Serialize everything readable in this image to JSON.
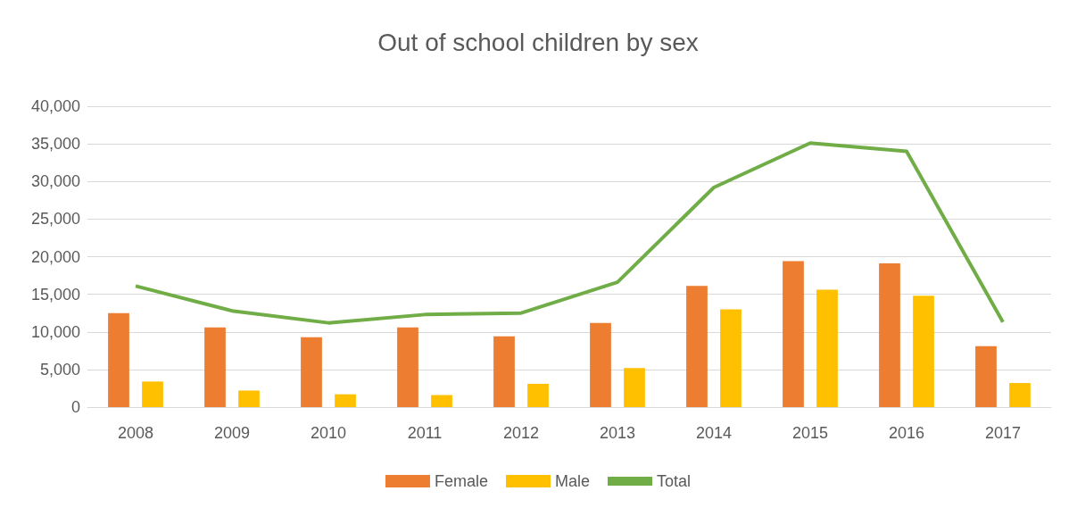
{
  "chart_data": {
    "type": "bar",
    "title": "Out of school children by sex",
    "categories": [
      "2008",
      "2009",
      "2010",
      "2011",
      "2012",
      "2013",
      "2014",
      "2015",
      "2016",
      "2017"
    ],
    "series": [
      {
        "name": "Female",
        "color": "#ed7d31",
        "values": [
          12500,
          10600,
          9300,
          10600,
          9400,
          11200,
          16100,
          19400,
          19100,
          8100
        ]
      },
      {
        "name": "Male",
        "color": "#ffc000",
        "values": [
          3400,
          2200,
          1700,
          1600,
          3100,
          5200,
          13000,
          15600,
          14800,
          3200
        ]
      },
      {
        "name": "Total",
        "type": "line",
        "color": "#70ad47",
        "values": [
          16100,
          12800,
          11200,
          12300,
          12500,
          16600,
          29200,
          35100,
          34000,
          11300
        ]
      }
    ],
    "ylim": [
      0,
      40000
    ],
    "yticks": [
      0,
      {
        "value": 5000,
        "label": "5,000"
      },
      {
        "value": 10000,
        "label": "10,000"
      },
      {
        "value": 15000,
        "label": "15,000"
      },
      {
        "value": 20000,
        "label": "20,000"
      },
      {
        "value": 25000,
        "label": "25,000"
      },
      {
        "value": 30000,
        "label": "30,000"
      },
      {
        "value": 35000,
        "label": "35,000"
      },
      {
        "value": 40000,
        "label": "40,000"
      }
    ],
    "grid": "y",
    "legend": "bottom",
    "marker": "none"
  }
}
